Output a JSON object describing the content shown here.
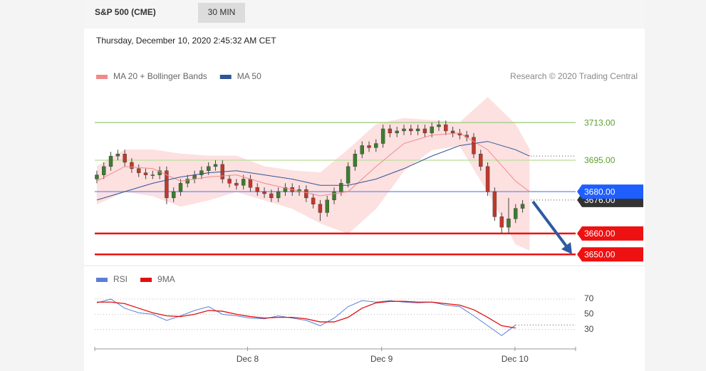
{
  "header": {
    "symbol": "S&P 500 (CME)",
    "interval": "30 MIN",
    "timestamp": "Thursday, December 10, 2020 2:45:32 AM CET"
  },
  "chart_data": [
    {
      "type": "candlestick",
      "annotation": "Research © 2020 Trading Central",
      "up_color": "#3c7d2e",
      "down_color": "#c0392b",
      "x": [
        0,
        1,
        2,
        3,
        4,
        5,
        6,
        7,
        8,
        9,
        10,
        11,
        12,
        13,
        14,
        15,
        16,
        17,
        18,
        19,
        20,
        21,
        22,
        23,
        24,
        25,
        26,
        27,
        28,
        29,
        30,
        31,
        32,
        33,
        34,
        35,
        36,
        37,
        38,
        39,
        40,
        41,
        42,
        43,
        44,
        45,
        46,
        47,
        48,
        49,
        50,
        51,
        52,
        53,
        54,
        55,
        56,
        57,
        58,
        59,
        60,
        61
      ],
      "open": [
        3686,
        3688,
        3692,
        3697,
        3698,
        3694,
        3691,
        3689,
        3688,
        3688,
        3690,
        3677,
        3680,
        3684,
        3686,
        3688,
        3690,
        3692,
        3693,
        3686,
        3684,
        3683,
        3686,
        3682,
        3680,
        3679,
        3677,
        3680,
        3682,
        3680,
        3681,
        3677,
        3674,
        3670,
        3676,
        3680,
        3684,
        3692,
        3698,
        3702,
        3701,
        3703,
        3710,
        3708,
        3709,
        3710,
        3709,
        3710,
        3708,
        3711,
        3712,
        3709,
        3708,
        3707,
        3706,
        3698,
        3692,
        3680,
        3668,
        3663,
        3667,
        3672
      ],
      "high": [
        3690,
        3694,
        3699,
        3700,
        3700,
        3696,
        3693,
        3691,
        3690,
        3692,
        3692,
        3682,
        3686,
        3688,
        3690,
        3692,
        3694,
        3695,
        3695,
        3688,
        3686,
        3688,
        3688,
        3684,
        3682,
        3681,
        3682,
        3684,
        3684,
        3683,
        3683,
        3679,
        3676,
        3678,
        3682,
        3686,
        3694,
        3700,
        3704,
        3704,
        3705,
        3712,
        3712,
        3711,
        3712,
        3712,
        3712,
        3712,
        3713,
        3714,
        3714,
        3711,
        3710,
        3709,
        3708,
        3700,
        3694,
        3682,
        3670,
        3677,
        3674,
        3676
      ],
      "low": [
        3684,
        3686,
        3690,
        3695,
        3692,
        3689,
        3687,
        3686,
        3686,
        3686,
        3674,
        3675,
        3678,
        3682,
        3684,
        3686,
        3688,
        3690,
        3684,
        3682,
        3681,
        3681,
        3680,
        3678,
        3677,
        3675,
        3675,
        3678,
        3678,
        3678,
        3675,
        3672,
        3666,
        3668,
        3674,
        3678,
        3682,
        3690,
        3696,
        3699,
        3699,
        3701,
        3706,
        3706,
        3707,
        3707,
        3707,
        3706,
        3706,
        3709,
        3707,
        3706,
        3705,
        3704,
        3696,
        3690,
        3678,
        3666,
        3660,
        3660,
        3665,
        3670
      ],
      "close": [
        3688,
        3692,
        3697,
        3698,
        3694,
        3691,
        3689,
        3688,
        3688,
        3690,
        3677,
        3680,
        3684,
        3686,
        3688,
        3690,
        3692,
        3693,
        3686,
        3684,
        3683,
        3686,
        3682,
        3680,
        3679,
        3677,
        3680,
        3682,
        3680,
        3681,
        3677,
        3674,
        3670,
        3676,
        3680,
        3684,
        3692,
        3698,
        3702,
        3701,
        3703,
        3710,
        3708,
        3709,
        3710,
        3709,
        3710,
        3708,
        3711,
        3712,
        3709,
        3708,
        3707,
        3706,
        3698,
        3692,
        3680,
        3668,
        3663,
        3667,
        3672,
        3674
      ],
      "series": [
        {
          "name": "MA 20 + Bollinger Bands",
          "color": "#f08a8a",
          "band_color": "#fde0e0",
          "x": [
            0,
            4,
            8,
            12,
            16,
            20,
            24,
            28,
            32,
            36,
            40,
            44,
            48,
            52,
            56,
            60,
            62
          ],
          "values": [
            3685,
            3692,
            3691,
            3685,
            3687,
            3688,
            3684,
            3681,
            3678,
            3680,
            3692,
            3703,
            3707,
            3708,
            3700,
            3685,
            3680
          ],
          "upper": [
            3692,
            3700,
            3700,
            3698,
            3697,
            3697,
            3692,
            3690,
            3689,
            3700,
            3712,
            3715,
            3714,
            3713,
            3725,
            3712,
            3700
          ],
          "lower": [
            3674,
            3680,
            3678,
            3673,
            3676,
            3680,
            3676,
            3672,
            3665,
            3660,
            3672,
            3690,
            3700,
            3702,
            3680,
            3655,
            3652
          ]
        },
        {
          "name": "MA 50",
          "color": "#2f5597",
          "x": [
            0,
            4,
            8,
            12,
            16,
            20,
            24,
            28,
            32,
            36,
            40,
            44,
            48,
            52,
            56,
            60,
            62
          ],
          "values": [
            3676,
            3680,
            3684,
            3687,
            3689,
            3690,
            3688,
            3686,
            3683,
            3683,
            3686,
            3691,
            3697,
            3702,
            3704,
            3700,
            3697
          ]
        }
      ],
      "levels": [
        {
          "value": 3713,
          "label": "3713.00",
          "color": "#5aa02c",
          "line_color": "#a8d08d",
          "boxed": false
        },
        {
          "value": 3695,
          "label": "3695.00",
          "color": "#5aa02c",
          "line_color": "#c5e0a5",
          "boxed": false
        },
        {
          "value": 3676,
          "label": "3676.00",
          "color": "#333333",
          "line_color": "#555555",
          "boxed": true
        },
        {
          "value": 3680,
          "label": "3680.00",
          "color": "#1f5eff",
          "line_color": "#7f9cf5",
          "boxed": true
        },
        {
          "value": 3660,
          "label": "3660.00",
          "color": "#ee1111",
          "line_color": "#ee1111",
          "boxed": true
        },
        {
          "value": 3650,
          "label": "3650.00",
          "color": "#ee1111",
          "line_color": "#ee1111",
          "boxed": true
        }
      ],
      "xlim": [
        -0.3,
        68.6
      ],
      "ylim": [
        3646,
        3727
      ]
    },
    {
      "type": "line",
      "series": [
        {
          "name": "RSI",
          "color": "#5b7fd6",
          "values": [
            65,
            70,
            58,
            52,
            50,
            42,
            48,
            55,
            60,
            50,
            48,
            45,
            44,
            48,
            45,
            42,
            35,
            45,
            60,
            68,
            66,
            68,
            66,
            65,
            66,
            62,
            60,
            48,
            35,
            22,
            36
          ]
        },
        {
          "name": "9MA",
          "color": "#e01010",
          "values": [
            66,
            66,
            64,
            58,
            52,
            48,
            47,
            50,
            55,
            54,
            50,
            47,
            45,
            46,
            46,
            44,
            40,
            40,
            46,
            58,
            65,
            67,
            67,
            66,
            66,
            64,
            62,
            56,
            46,
            35,
            32
          ]
        }
      ],
      "x": [
        0,
        2,
        4,
        6,
        8,
        10,
        12,
        14,
        16,
        18,
        20,
        22,
        24,
        26,
        28,
        30,
        32,
        34,
        36,
        38,
        40,
        42,
        44,
        46,
        48,
        50,
        52,
        54,
        56,
        58,
        60
      ],
      "xlim": [
        -0.3,
        68.6
      ],
      "ylim": [
        12,
        84
      ],
      "yticks": [
        30,
        50,
        70
      ],
      "xticks": [
        {
          "value": 21.6,
          "label": "Dec 8"
        },
        {
          "value": 40.8,
          "label": "Dec 9"
        },
        {
          "value": 59.9,
          "label": "Dec 10"
        }
      ]
    }
  ]
}
